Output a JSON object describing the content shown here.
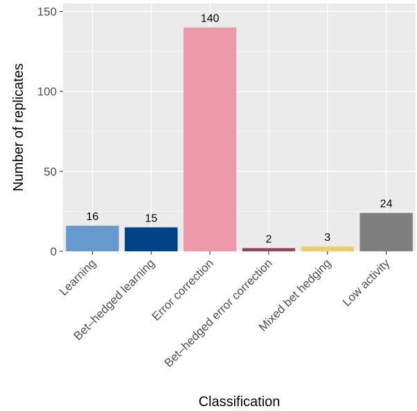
{
  "chart_data": {
    "type": "bar",
    "title": "",
    "xlabel": "Classification",
    "ylabel": "Number of replicates",
    "ylim": [
      0,
      155
    ],
    "yticks": [
      0,
      50,
      100,
      150
    ],
    "grid": true,
    "categories": [
      "Learning",
      "Bet–hedged learning",
      "Error correction",
      "Bet–hedged error correction",
      "Mixed bet hedging",
      "Low activity"
    ],
    "values": [
      16,
      15,
      140,
      2,
      3,
      24
    ],
    "data_labels": [
      "16",
      "15",
      "140",
      "2",
      "3",
      "24"
    ],
    "colors": [
      "#6699cc",
      "#004488",
      "#ee99aa",
      "#994455",
      "#eecc66",
      "#7f7f7f"
    ],
    "panel_background": "#ebebeb",
    "grid_color": "#ffffff"
  }
}
